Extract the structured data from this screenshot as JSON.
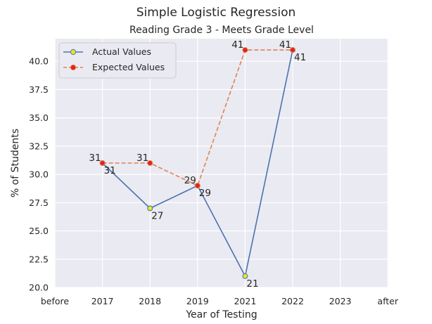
{
  "chart_data": {
    "type": "line",
    "title": "Simple Logistic Regression",
    "subtitle": "Reading Grade 3 - Meets Grade Level",
    "xlabel": "Year of Testing",
    "ylabel": "% of Students",
    "categories": [
      "before",
      "2017",
      "2018",
      "2019",
      "2021",
      "2022",
      "2023",
      "after"
    ],
    "ylim": [
      20.0,
      42.0
    ],
    "yticks": [
      "20.0",
      "22.5",
      "25.0",
      "27.5",
      "30.0",
      "32.5",
      "35.0",
      "37.5",
      "40.0"
    ],
    "grid": true,
    "legend_position": "top-left",
    "series": [
      {
        "name": "Actual Values",
        "x": [
          "2017",
          "2018",
          "2019",
          "2021",
          "2022"
        ],
        "values": [
          31,
          27,
          29,
          21,
          41
        ],
        "labels": [
          "31",
          "27",
          "29",
          "21",
          "41"
        ],
        "color": "#4c72b0",
        "marker_color": "#e6e621",
        "line_style": "solid"
      },
      {
        "name": "Expected Values",
        "x": [
          "2017",
          "2018",
          "2019",
          "2021",
          "2022"
        ],
        "values": [
          31,
          31,
          29,
          41,
          41
        ],
        "labels": [
          "31",
          "31",
          "29",
          "41",
          "41"
        ],
        "color": "#dd8452",
        "marker_color": "#e8201a",
        "line_style": "dashed"
      }
    ],
    "colors": {
      "plot_background": "#eaeaf2",
      "grid": "#ffffff",
      "text": "#262626"
    }
  }
}
